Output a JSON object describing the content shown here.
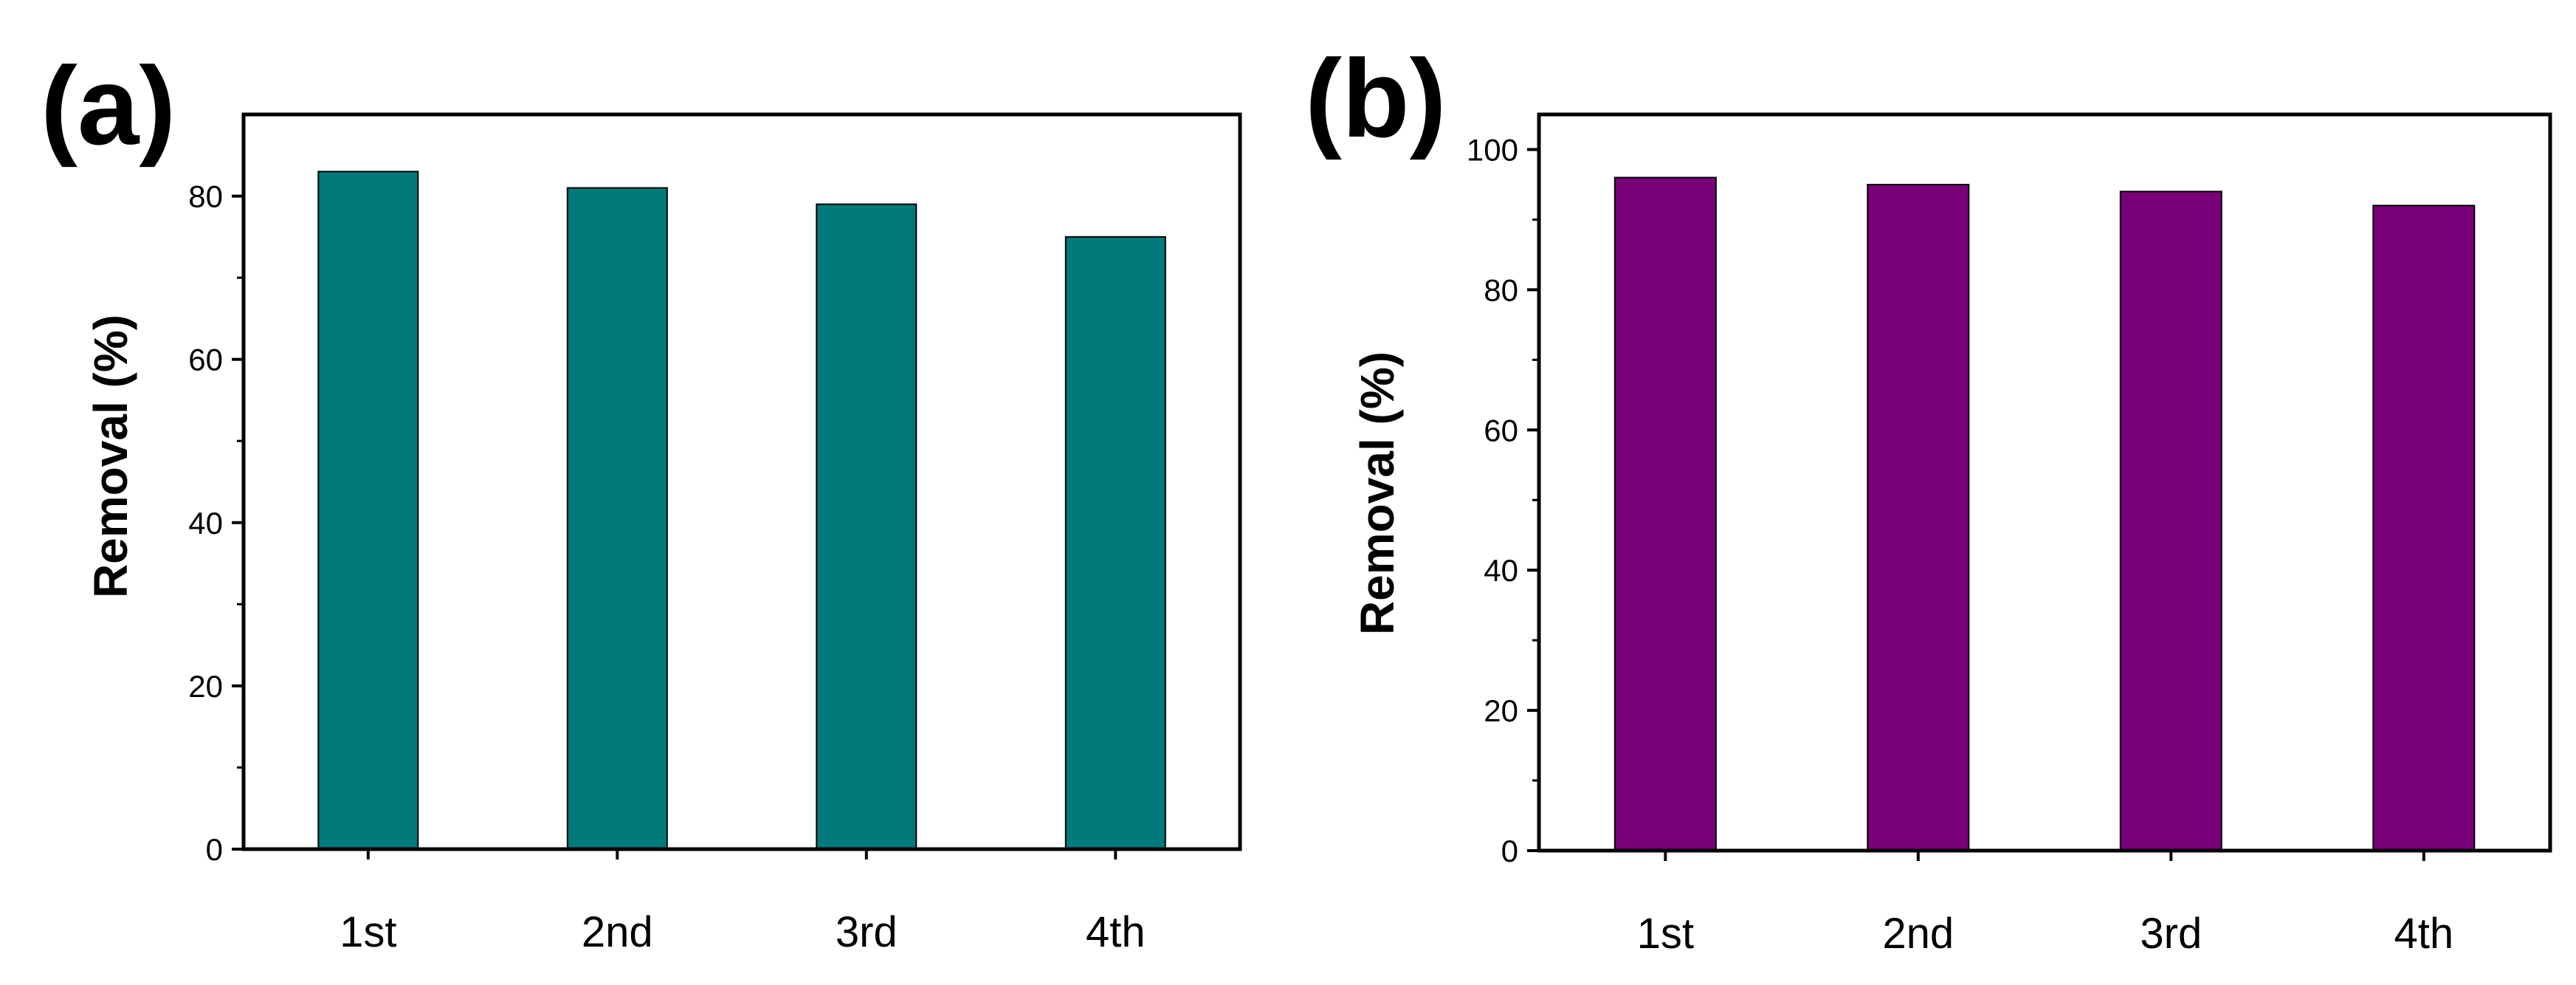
{
  "figure": {
    "panels": [
      "(a)",
      "(b)"
    ]
  },
  "colors": {
    "panel_a_bar": "#007a7a",
    "panel_b_bar": "#7a007a",
    "axis": "#000000"
  },
  "chart_data": [
    {
      "type": "bar",
      "panel_label": "(a)",
      "title": "",
      "xlabel": "",
      "ylabel": "Removal (%)",
      "categories": [
        "1st",
        "2nd",
        "3rd",
        "4th"
      ],
      "values": [
        83,
        81,
        79,
        75
      ],
      "ylim": [
        0,
        90
      ],
      "yticks": [
        0,
        20,
        40,
        60,
        80
      ],
      "ytick_labels": [
        "0",
        "20",
        "40",
        "60",
        "80"
      ],
      "grid": false,
      "legend": "none"
    },
    {
      "type": "bar",
      "panel_label": "(b)",
      "title": "",
      "xlabel": "",
      "ylabel": "Removal (%)",
      "categories": [
        "1st",
        "2nd",
        "3rd",
        "4th"
      ],
      "values": [
        96,
        95,
        94,
        92
      ],
      "ylim": [
        0,
        105
      ],
      "yticks": [
        0,
        20,
        40,
        60,
        80,
        100
      ],
      "ytick_labels": [
        "0",
        "20",
        "40",
        "60",
        "80",
        "100"
      ],
      "grid": false,
      "legend": "none"
    }
  ]
}
